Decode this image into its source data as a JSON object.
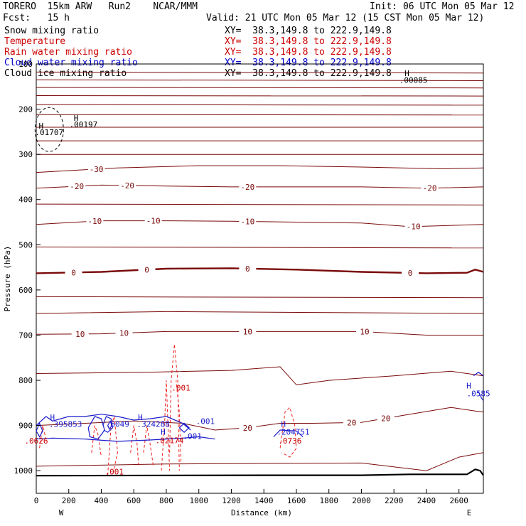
{
  "header": {
    "model": "TORERO  15km ARW   Run2    NCAR/MMM",
    "init": "Init: 06 UTC Mon 05 Mar 12",
    "fcst": "Fcst:   15 h",
    "valid": "Valid: 21 UTC Mon 05 Mar 12 (15 CST Mon 05 Mar 12)"
  },
  "legend": [
    {
      "label": "Snow mixing ratio",
      "xy": "XY=  38.3,149.8 to 222.9,149.8",
      "color": "#000000"
    },
    {
      "label": "Temperature",
      "xy": "XY=  38.3,149.8 to 222.9,149.8",
      "color": "#cc0000"
    },
    {
      "label": "Rain water mixing ratio",
      "xy": "XY=  38.3,149.8 to 222.9,149.8",
      "color": "#cc0000"
    },
    {
      "label": "Cloud water mixing ratio",
      "xy": "XY=  38.3,149.8 to 222.9,149.8",
      "color": "#0000cc"
    },
    {
      "label": "Cloud ice mixing ratio",
      "xy": "XY=  38.3,149.8 to 222.9,149.8",
      "color": "#000000"
    }
  ],
  "chart_data": {
    "type": "contour-cross-section",
    "xlabel": "Distance (km)",
    "ylabel": "Pressure (hPa)",
    "xlim": [
      0,
      2750
    ],
    "ylim": [
      100,
      1050
    ],
    "xticks": [
      0,
      200,
      400,
      600,
      800,
      1000,
      1200,
      1400,
      1600,
      1800,
      2000,
      2200,
      2400,
      2600
    ],
    "yticks": [
      100,
      200,
      300,
      400,
      500,
      600,
      700,
      800,
      900,
      1000
    ],
    "x_end_labels": {
      "left": "W",
      "right": "E"
    },
    "temperature_contours": [
      {
        "value": -30,
        "label": "-30",
        "label_x": 370,
        "points": [
          [
            0,
            340
          ],
          [
            500,
            330
          ],
          [
            1000,
            325
          ],
          [
            1500,
            325
          ],
          [
            2000,
            328
          ],
          [
            2500,
            332
          ],
          [
            2750,
            330
          ]
        ]
      },
      {
        "value": -20,
        "label": "-20",
        "label_x": [
          250,
          560,
          1300,
          2420
        ],
        "points": [
          [
            0,
            375
          ],
          [
            400,
            368
          ],
          [
            800,
            370
          ],
          [
            1200,
            372
          ],
          [
            1600,
            372
          ],
          [
            2000,
            372
          ],
          [
            2400,
            375
          ],
          [
            2750,
            372
          ]
        ]
      },
      {
        "value": -10,
        "label": "-10",
        "label_x": [
          360,
          720,
          1300,
          2320
        ],
        "points": [
          [
            0,
            455
          ],
          [
            400,
            447
          ],
          [
            800,
            447
          ],
          [
            1200,
            448
          ],
          [
            1600,
            450
          ],
          [
            2000,
            452
          ],
          [
            2300,
            460
          ],
          [
            2750,
            455
          ]
        ]
      },
      {
        "value": 0,
        "label": "0",
        "label_x": [
          230,
          680,
          1300,
          2300
        ],
        "points": [
          [
            0,
            563
          ],
          [
            400,
            560
          ],
          [
            800,
            553
          ],
          [
            1200,
            552
          ],
          [
            1600,
            555
          ],
          [
            2000,
            560
          ],
          [
            2400,
            563
          ],
          [
            2650,
            562
          ],
          [
            2700,
            555
          ],
          [
            2750,
            560
          ]
        ]
      },
      {
        "value": 10,
        "label": "10",
        "label_x": [
          270,
          540,
          1300,
          2020
        ],
        "points": [
          [
            0,
            698
          ],
          [
            400,
            697
          ],
          [
            800,
            692
          ],
          [
            1200,
            692
          ],
          [
            1600,
            692
          ],
          [
            2000,
            692
          ],
          [
            2400,
            700
          ],
          [
            2750,
            700
          ]
        ]
      },
      {
        "value": 20,
        "label": "20",
        "label_x": [
          1300,
          1940,
          2150
        ],
        "points": [
          [
            0,
            900
          ],
          [
            300,
            895
          ],
          [
            600,
            890
          ],
          [
            900,
            895
          ],
          [
            1100,
            910
          ],
          [
            1300,
            905
          ],
          [
            1500,
            895
          ],
          [
            1700,
            895
          ],
          [
            2000,
            893
          ],
          [
            2250,
            878
          ],
          [
            2550,
            860
          ],
          [
            2700,
            868
          ],
          [
            2750,
            870
          ]
        ]
      }
    ],
    "labels": {
      "snow": [
        {
          "text": "H",
          "x": 30,
          "p": 243
        },
        {
          "text": ".01707",
          "x": 80,
          "p": 257
        },
        {
          "text": "H",
          "x": 245,
          "p": 226
        },
        {
          "text": ".00197",
          "x": 290,
          "p": 240
        },
        {
          "text": "H",
          "x": 2280,
          "p": 127
        },
        {
          "text": ".00085",
          "x": 2320,
          "p": 142
        }
      ],
      "rain": [
        {
          "text": ".001",
          "x": 890,
          "p": 823
        },
        {
          "text": ".02174",
          "x": 820,
          "p": 939
        },
        {
          "text": ".001",
          "x": 480,
          "p": 1008
        },
        {
          "text": ".0736",
          "x": 1560,
          "p": 940
        },
        {
          "text": ".0626",
          "x": 0,
          "p": 940
        }
      ],
      "cloud_water": [
        {
          "text": "H",
          "x": 100,
          "p": 888
        },
        {
          "text": ".395853",
          "x": 180,
          "p": 903
        },
        {
          "text": ".6049",
          "x": 500,
          "p": 903
        },
        {
          "text": "H",
          "x": 640,
          "p": 888
        },
        {
          "text": ".324288",
          "x": 720,
          "p": 903
        },
        {
          "text": "H",
          "x": 780,
          "p": 920
        },
        {
          "text": ".001",
          "x": 1040,
          "p": 897
        },
        {
          "text": ".001",
          "x": 960,
          "p": 930
        },
        {
          "text": "H",
          "x": 1520,
          "p": 903
        },
        {
          "text": ".204751",
          "x": 1580,
          "p": 920
        },
        {
          "text": "H",
          "x": 2660,
          "p": 818
        },
        {
          "text": ".0585",
          "x": 2720,
          "p": 835
        }
      ]
    }
  }
}
